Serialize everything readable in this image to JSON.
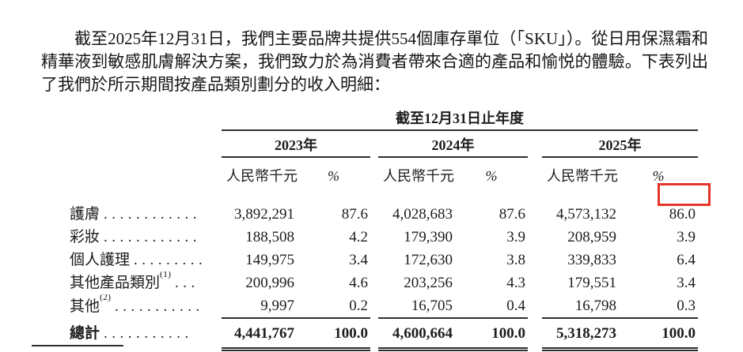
{
  "paragraph": "截至2025年12月31日，我們主要品牌共提供554個庫存單位（「SKU」）。從日用保濕霜和精華液到敏感肌膚解決方案，我們致力於為消費者帶來合適的產品和愉悦的體驗。下表列出了我們於所示期間按產品類別劃分的收入明細：",
  "table": {
    "period_header": "截至12月31日止年度",
    "years": [
      "2023年",
      "2024年",
      "2025年"
    ],
    "amount_header": "人民幣千元",
    "percent_header": "%",
    "rows": [
      {
        "label": "護膚",
        "sup": "",
        "dots": "............",
        "values": [
          "3,892,291",
          "87.6",
          "4,028,683",
          "87.6",
          "4,573,132",
          "86.0"
        ]
      },
      {
        "label": "彩妝",
        "sup": "",
        "dots": "............",
        "values": [
          "188,508",
          "4.2",
          "179,390",
          "3.9",
          "208,959",
          "3.9"
        ]
      },
      {
        "label": "個人護理",
        "sup": "",
        "dots": ".........",
        "values": [
          "149,975",
          "3.4",
          "172,630",
          "3.8",
          "339,833",
          "6.4"
        ]
      },
      {
        "label": "其他產品類別",
        "sup": "(1)",
        "dots": "...",
        "values": [
          "200,996",
          "4.6",
          "203,256",
          "4.3",
          "179,551",
          "3.4"
        ]
      },
      {
        "label": "其他",
        "sup": "(2)",
        "dots": "...........",
        "values": [
          "9,997",
          "0.2",
          "16,705",
          "0.4",
          "16,798",
          "0.3"
        ]
      }
    ],
    "total": {
      "label": "總計",
      "dots": "...........",
      "values": [
        "4,441,767",
        "100.0",
        "4,600,664",
        "100.0",
        "5,318,273",
        "100.0"
      ]
    },
    "highlight": {
      "row_label": "護膚",
      "year": "2025年",
      "column": "%",
      "value": "86.0",
      "color": "#e5342a"
    }
  }
}
